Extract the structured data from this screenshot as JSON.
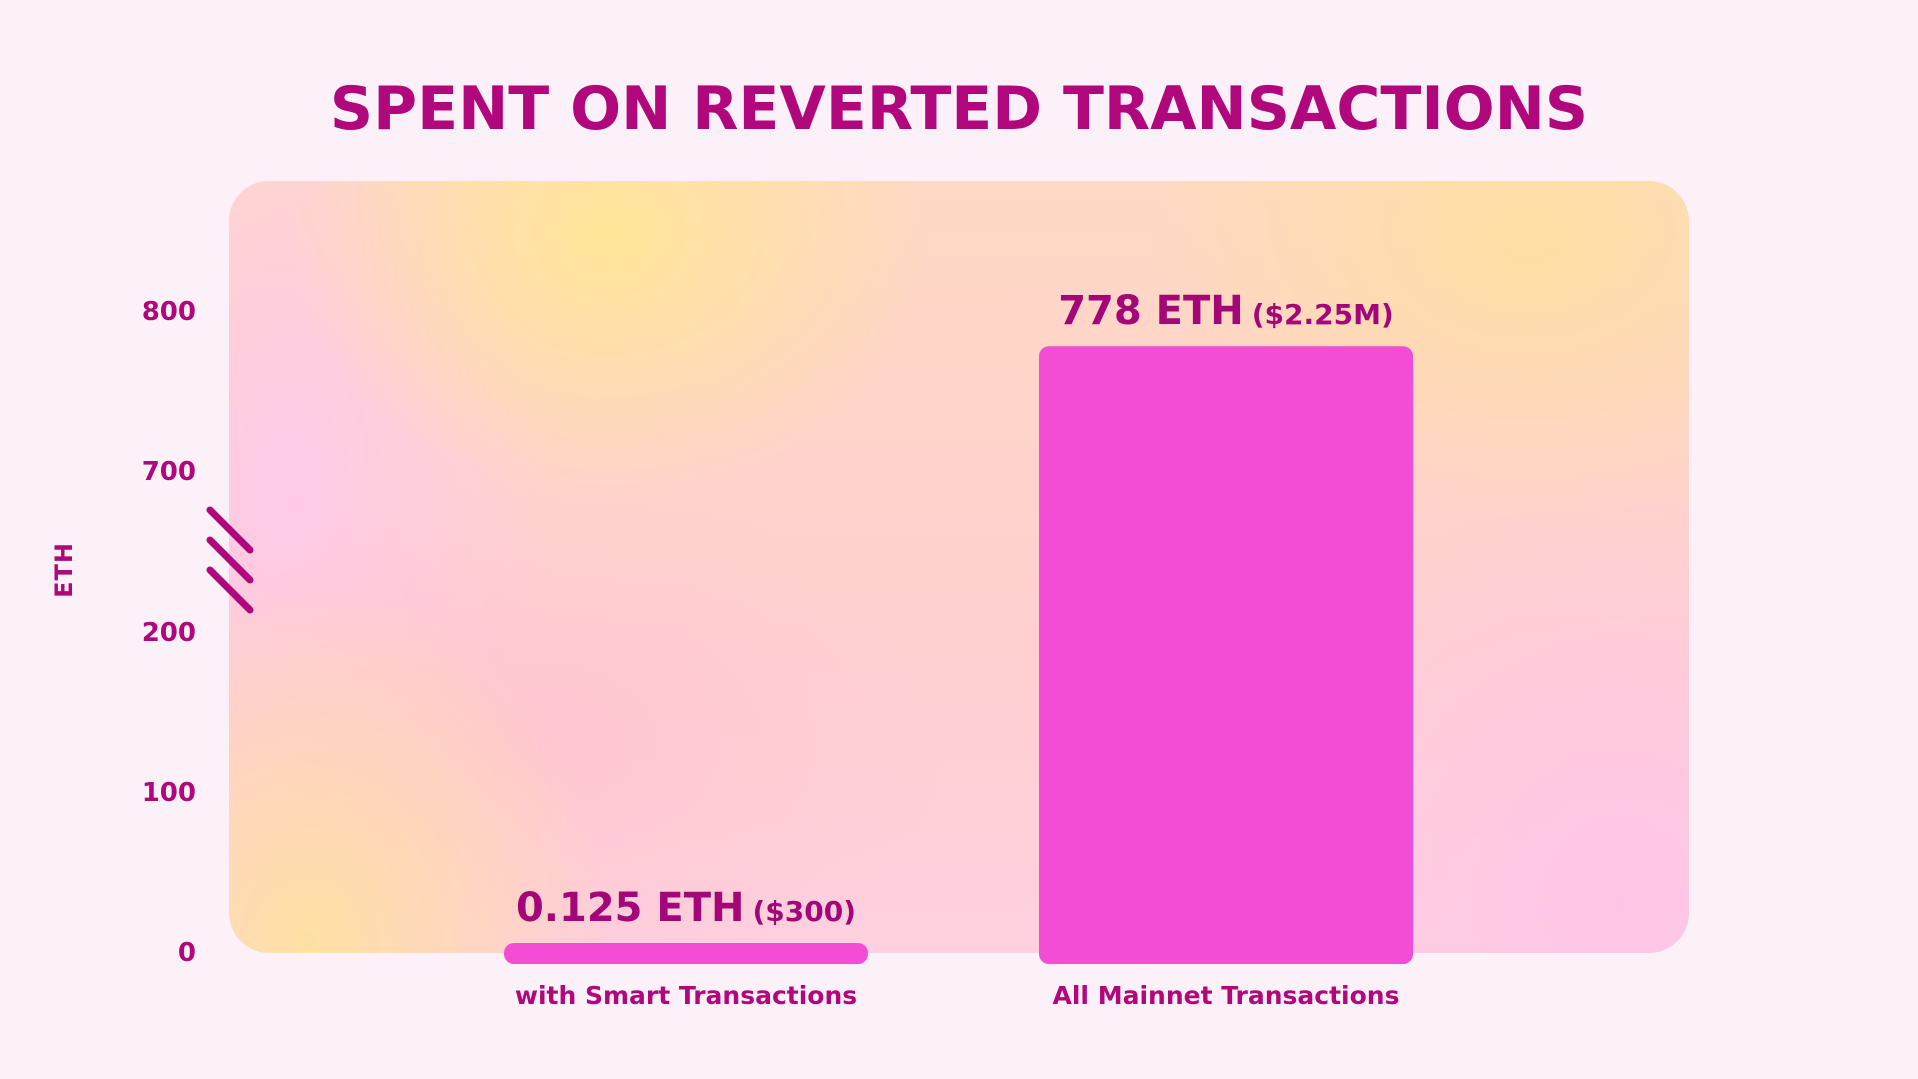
{
  "chart_data": {
    "type": "bar",
    "title": "SPENT ON REVERTED TRANSACTIONS",
    "ylabel": "ETH",
    "xlabel": "",
    "categories": [
      "with Smart Transactions",
      "All Mainnet Transactions"
    ],
    "values": [
      0.125,
      778
    ],
    "data_labels": [
      {
        "main": "0.125 ETH",
        "sub": "($300)"
      },
      {
        "main": "778 ETH",
        "sub": "($2.25M)"
      }
    ],
    "y_ticks": [
      "0",
      "100",
      "200",
      "700",
      "800"
    ],
    "y_axis_break": {
      "from": 200,
      "to": 700
    },
    "ylim": [
      0,
      870
    ],
    "grid": false,
    "legend": "none",
    "bar_color": "#f24dd4",
    "text_color": "#b0077c"
  }
}
